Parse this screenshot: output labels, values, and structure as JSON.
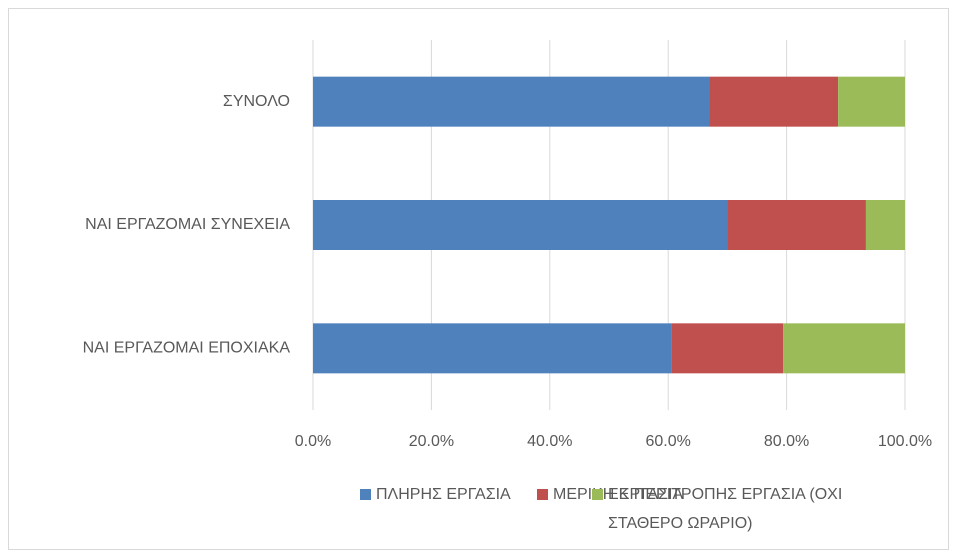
{
  "chart_data": {
    "type": "stacked_barh",
    "categories": [
      "ΣΥΝΟΛΟ",
      "ΝΑΙ ΕΡΓΑΖΟΜΑΙ ΣΥΝΕΧΕΙΑ",
      "ΝΑΙ ΕΡΓΑΖΟΜΑΙ ΕΠΟΧΙΑΚΑ"
    ],
    "series": [
      {
        "name": "ΠΛΗΡΗΣ ΕΡΓΑΣΙΑ",
        "color": "#4f81bd",
        "values": [
          66.9,
          70.1,
          60.5
        ]
      },
      {
        "name": "ΜΕΡΙΚΗ ΕΡΓΑΣΙΑ",
        "color": "#c0504d",
        "values": [
          21.8,
          23.3,
          18.9
        ]
      },
      {
        "name": "ΕΚ ΠΕΡΙΤΡΟΠΗΣ ΕΡΓΑΣΙΑ (ΟΧΙ ΣΤΑΘΕΡΟ ΩΡΑΡΙΟ)",
        "color": "#9bbb59",
        "values": [
          11.3,
          6.6,
          20.6
        ]
      }
    ],
    "xlim": [
      0,
      100
    ],
    "xticks": [
      {
        "value": 0,
        "label": "0.0%"
      },
      {
        "value": 20,
        "label": "20.0%"
      },
      {
        "value": 40,
        "label": "40.0%"
      },
      {
        "value": 60,
        "label": "60.0%"
      },
      {
        "value": 80,
        "label": "80.0%"
      },
      {
        "value": 100,
        "label": "100.0%"
      }
    ],
    "grid": true,
    "legend": "bottom"
  }
}
